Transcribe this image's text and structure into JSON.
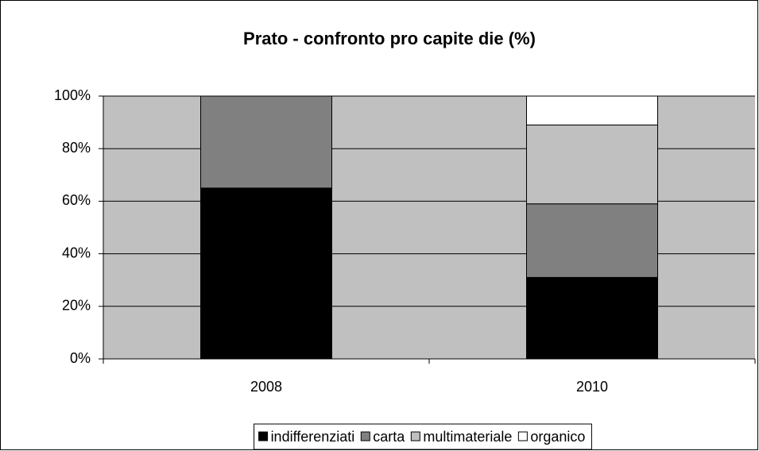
{
  "chart_data": {
    "type": "stacked_bar",
    "title": "Prato - confronto pro capite die (%)",
    "categories": [
      "2008",
      "2010"
    ],
    "series": [
      {
        "name": "indifferenziati",
        "color": "#000000",
        "values": [
          65,
          31
        ]
      },
      {
        "name": "carta",
        "color": "#808080",
        "values": [
          35,
          28
        ]
      },
      {
        "name": "multimateriale",
        "color": "#c0c0c0",
        "values": [
          0,
          30
        ]
      },
      {
        "name": "organico",
        "color": "#ffffff",
        "values": [
          0,
          11
        ]
      }
    ],
    "ylim": [
      0,
      100
    ],
    "yticks": [
      {
        "value": 0,
        "label": "0%"
      },
      {
        "value": 20,
        "label": "20%"
      },
      {
        "value": 40,
        "label": "40%"
      },
      {
        "value": 60,
        "label": "60%"
      },
      {
        "value": 80,
        "label": "80%"
      },
      {
        "value": 100,
        "label": "100%"
      }
    ],
    "grid": true,
    "legend": "bottom",
    "plot_background": "#c0c0c0"
  }
}
